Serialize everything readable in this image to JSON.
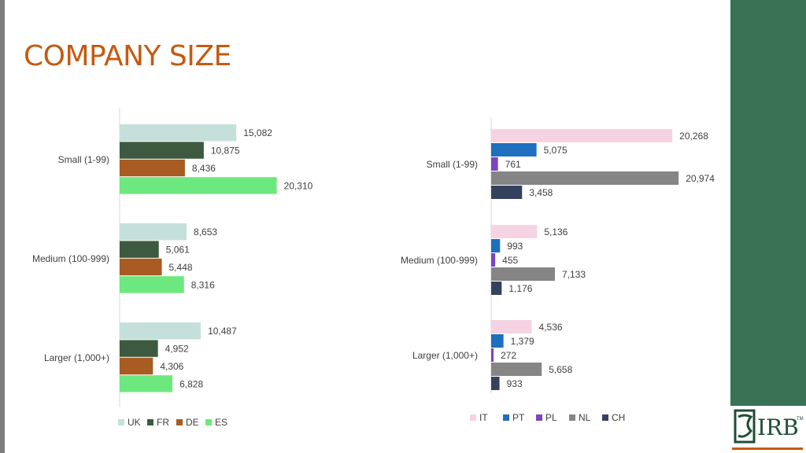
{
  "slide": {
    "title": "COMPANY SIZE",
    "colors": {
      "title": "#c55a11",
      "side_band": "#3a7255"
    }
  },
  "chart_data": [
    {
      "type": "bar",
      "orientation": "horizontal",
      "categories": [
        "Small (1-99)",
        "Medium (100-999)",
        "Larger (1,000+)"
      ],
      "series": [
        {
          "name": "UK",
          "color": "#c5e0da",
          "values": [
            15082,
            8653,
            10487
          ],
          "labels": [
            "15,082",
            "8,653",
            "10,487"
          ]
        },
        {
          "name": "FR",
          "color": "#3d5a40",
          "values": [
            10875,
            5061,
            4952
          ],
          "labels": [
            "10,875",
            "5,061",
            "4,952"
          ]
        },
        {
          "name": "DE",
          "color": "#a85b22",
          "values": [
            8436,
            5448,
            4306
          ],
          "labels": [
            "8,436",
            "5,448",
            "4,306"
          ]
        },
        {
          "name": "ES",
          "color": "#6de87f",
          "values": [
            20310,
            8316,
            6828
          ],
          "labels": [
            "20,310",
            "8,316",
            "6,828"
          ]
        }
      ],
      "xlim": [
        0,
        35000
      ],
      "grid": false,
      "legend": "bottom-left"
    },
    {
      "type": "bar",
      "orientation": "horizontal",
      "categories": [
        "Small (1-99)",
        "Medium (100-999)",
        "Larger (1,000+)"
      ],
      "series": [
        {
          "name": "IT",
          "color": "#f6d3e2",
          "values": [
            20268,
            5136,
            4536
          ],
          "labels": [
            "20,268",
            "5,136",
            "4,536"
          ]
        },
        {
          "name": "PT",
          "color": "#1f6fbf",
          "values": [
            5075,
            993,
            1379
          ],
          "labels": [
            "5,075",
            "993",
            "1,379"
          ]
        },
        {
          "name": "PL",
          "color": "#7b45c2",
          "values": [
            761,
            455,
            272
          ],
          "labels": [
            "761",
            "455",
            "272"
          ]
        },
        {
          "name": "NL",
          "color": "#858585",
          "values": [
            20974,
            7133,
            5658
          ],
          "labels": [
            "20,974",
            "7,133",
            "5,658"
          ]
        },
        {
          "name": "CH",
          "color": "#34425e",
          "values": [
            3458,
            1176,
            933
          ],
          "labels": [
            "3,458",
            "1,176",
            "933"
          ]
        }
      ],
      "xlim": [
        0,
        28000
      ],
      "grid": false,
      "legend": "bottom-center"
    }
  ],
  "logo": {
    "text": "IRB",
    "tm": "TM"
  }
}
